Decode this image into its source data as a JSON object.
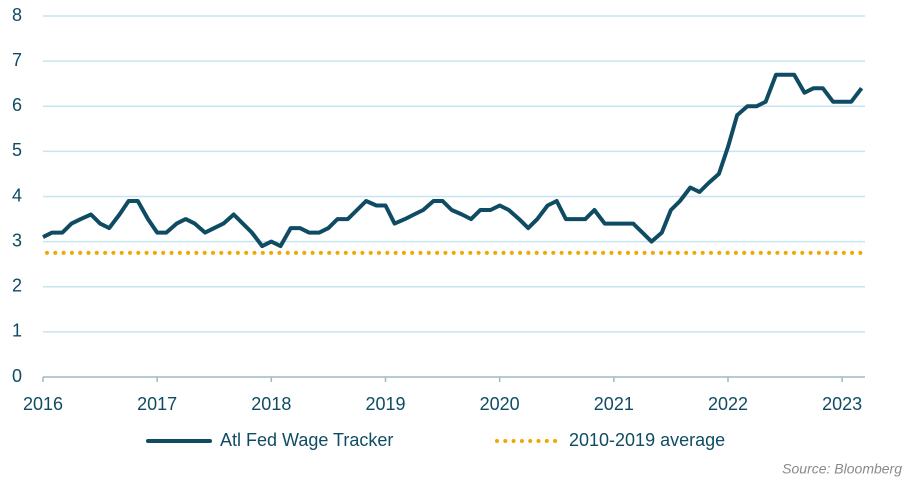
{
  "chart_data": {
    "type": "line",
    "source": "Source: Bloomberg",
    "x": [
      2016,
      2016.08,
      2016.17,
      2016.25,
      2016.33,
      2016.42,
      2016.5,
      2016.58,
      2016.67,
      2016.75,
      2016.83,
      2016.92,
      2017,
      2017.08,
      2017.17,
      2017.25,
      2017.33,
      2017.42,
      2017.5,
      2017.58,
      2017.67,
      2017.75,
      2017.83,
      2017.92,
      2018,
      2018.08,
      2018.17,
      2018.25,
      2018.33,
      2018.42,
      2018.5,
      2018.58,
      2018.67,
      2018.75,
      2018.83,
      2018.92,
      2019,
      2019.08,
      2019.17,
      2019.25,
      2019.33,
      2019.42,
      2019.5,
      2019.58,
      2019.67,
      2019.75,
      2019.83,
      2019.92,
      2020,
      2020.08,
      2020.17,
      2020.25,
      2020.33,
      2020.42,
      2020.5,
      2020.58,
      2020.67,
      2020.75,
      2020.83,
      2020.92,
      2021,
      2021.08,
      2021.17,
      2021.25,
      2021.33,
      2021.42,
      2021.5,
      2021.58,
      2021.67,
      2021.75,
      2021.83,
      2021.92,
      2022,
      2022.08,
      2022.17,
      2022.25,
      2022.33,
      2022.42,
      2022.5,
      2022.58,
      2022.67,
      2022.75,
      2022.83,
      2022.92,
      2023,
      2023.08,
      2023.17
    ],
    "series": [
      {
        "name": "Atl Fed Wage Tracker",
        "color": "#0f4c63",
        "values": [
          3.1,
          3.2,
          3.2,
          3.4,
          3.5,
          3.6,
          3.4,
          3.3,
          3.6,
          3.9,
          3.9,
          3.5,
          3.2,
          3.2,
          3.4,
          3.5,
          3.4,
          3.2,
          3.3,
          3.4,
          3.6,
          3.4,
          3.2,
          2.9,
          3.0,
          2.9,
          3.3,
          3.3,
          3.2,
          3.2,
          3.3,
          3.5,
          3.5,
          3.7,
          3.9,
          3.8,
          3.8,
          3.4,
          3.5,
          3.6,
          3.7,
          3.9,
          3.9,
          3.7,
          3.6,
          3.5,
          3.7,
          3.7,
          3.8,
          3.7,
          3.5,
          3.3,
          3.5,
          3.8,
          3.9,
          3.5,
          3.5,
          3.5,
          3.7,
          3.4,
          3.4,
          3.4,
          3.4,
          3.2,
          3.0,
          3.2,
          3.7,
          3.9,
          4.2,
          4.1,
          4.3,
          4.5,
          5.1,
          5.8,
          6.0,
          6.0,
          6.1,
          6.7,
          6.7,
          6.7,
          6.3,
          6.4,
          6.4,
          6.1,
          6.1,
          6.1,
          6.4
        ]
      },
      {
        "name": "2010-2019 average",
        "color": "#f0a800",
        "dash": "dotted",
        "value": 2.75
      }
    ],
    "xlim": [
      2016,
      2023.2
    ],
    "xticks": [
      2016,
      2017,
      2018,
      2019,
      2020,
      2021,
      2022,
      2023
    ],
    "ylim": [
      0,
      8
    ],
    "yticks": [
      0,
      1,
      2,
      3,
      4,
      5,
      6,
      7,
      8
    ],
    "grid": true
  }
}
